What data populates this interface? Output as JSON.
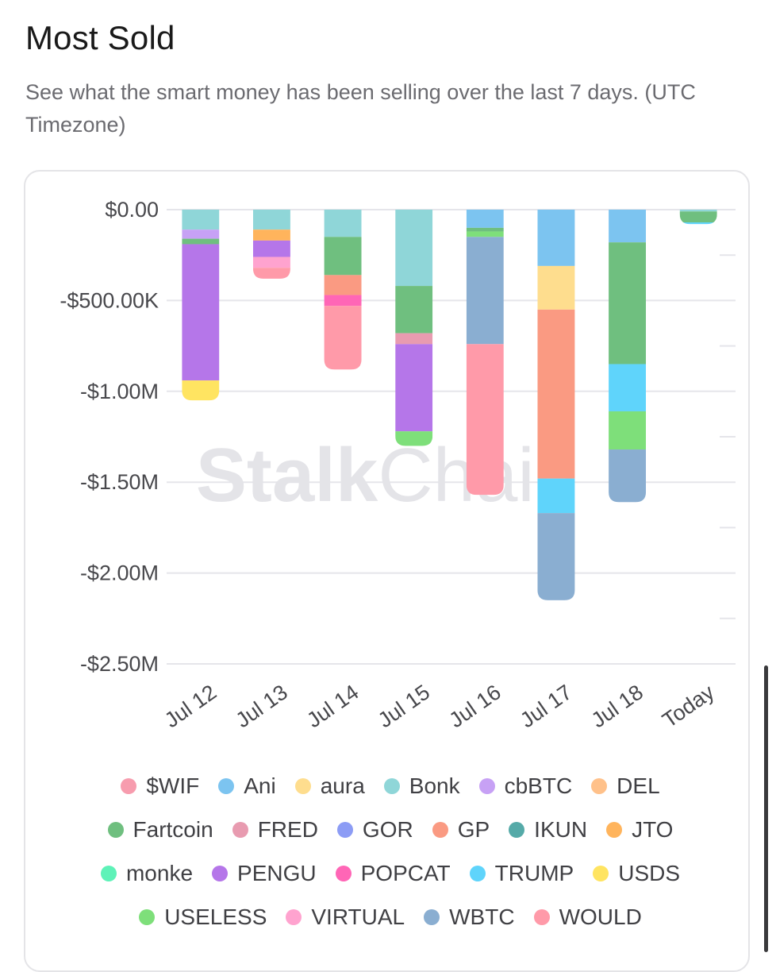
{
  "header": {
    "title": "Most Sold",
    "subtitle": "See what the smart money has been selling over the last 7 days. (UTC Timezone)"
  },
  "watermark": {
    "text_bold": "Stalk",
    "text_light": "Chain"
  },
  "chart_data": {
    "type": "bar",
    "stacked": true,
    "categories": [
      "Jul 12",
      "Jul 13",
      "Jul 14",
      "Jul 15",
      "Jul 16",
      "Jul 17",
      "Jul 18",
      "Today"
    ],
    "y_ticks": [
      {
        "value": 0,
        "label": "$0.00"
      },
      {
        "value": -500000,
        "label": "-$500.00K"
      },
      {
        "value": -1000000,
        "label": "-$1.00M"
      },
      {
        "value": -1500000,
        "label": "-$1.50M"
      },
      {
        "value": -2000000,
        "label": "-$2.00M"
      },
      {
        "value": -2500000,
        "label": "-$2.50M"
      }
    ],
    "ylim": [
      -2500000,
      0
    ],
    "grid": true,
    "legend_position": "bottom",
    "series": [
      {
        "name": "$WIF",
        "color": "#f79cae",
        "values": [
          0,
          0,
          0,
          0,
          0,
          0,
          0,
          0
        ]
      },
      {
        "name": "Ani",
        "color": "#7cc4f0",
        "values": [
          0,
          0,
          0,
          0,
          -100000,
          -310000,
          -180000,
          0
        ]
      },
      {
        "name": "aura",
        "color": "#fedd8e",
        "values": [
          0,
          0,
          0,
          0,
          0,
          -240000,
          0,
          0
        ]
      },
      {
        "name": "Bonk",
        "color": "#8fd6d8",
        "values": [
          -110000,
          -110000,
          -150000,
          -420000,
          0,
          0,
          0,
          -10000
        ]
      },
      {
        "name": "cbBTC",
        "color": "#c7a1f5",
        "values": [
          -50000,
          0,
          0,
          0,
          0,
          0,
          0,
          0
        ]
      },
      {
        "name": "DEL",
        "color": "#ffc18a",
        "values": [
          0,
          0,
          0,
          0,
          0,
          0,
          0,
          0
        ]
      },
      {
        "name": "Fartcoin",
        "color": "#6fbf7f",
        "values": [
          -30000,
          0,
          -210000,
          -260000,
          -20000,
          0,
          -670000,
          -60000
        ]
      },
      {
        "name": "FRED",
        "color": "#e89bb0",
        "values": [
          0,
          0,
          0,
          -60000,
          0,
          0,
          0,
          0
        ]
      },
      {
        "name": "GOR",
        "color": "#8c9cf5",
        "values": [
          0,
          0,
          0,
          0,
          0,
          0,
          0,
          0
        ]
      },
      {
        "name": "GP",
        "color": "#fa9a82",
        "values": [
          0,
          0,
          -110000,
          0,
          0,
          -930000,
          0,
          0
        ]
      },
      {
        "name": "IKUN",
        "color": "#55aaa8",
        "values": [
          0,
          0,
          0,
          0,
          0,
          0,
          0,
          0
        ]
      },
      {
        "name": "JTO",
        "color": "#ffb45c",
        "values": [
          0,
          -60000,
          0,
          0,
          0,
          0,
          0,
          0
        ]
      },
      {
        "name": "monke",
        "color": "#5ef2b8",
        "values": [
          0,
          0,
          0,
          0,
          0,
          0,
          0,
          0
        ]
      },
      {
        "name": "PENGU",
        "color": "#b576e9",
        "values": [
          -750000,
          -90000,
          0,
          -480000,
          0,
          0,
          0,
          0
        ]
      },
      {
        "name": "POPCAT",
        "color": "#ff66b6",
        "values": [
          0,
          0,
          -60000,
          0,
          0,
          0,
          0,
          0
        ]
      },
      {
        "name": "TRUMP",
        "color": "#5fd4fb",
        "values": [
          0,
          0,
          0,
          0,
          0,
          -190000,
          -260000,
          -10000
        ]
      },
      {
        "name": "USDS",
        "color": "#ffe461",
        "values": [
          -110000,
          0,
          0,
          0,
          0,
          0,
          0,
          0
        ]
      },
      {
        "name": "USELESS",
        "color": "#7edf7a",
        "values": [
          0,
          0,
          0,
          -80000,
          -30000,
          0,
          -210000,
          0
        ]
      },
      {
        "name": "VIRTUAL",
        "color": "#ffa3cf",
        "values": [
          0,
          -60000,
          0,
          0,
          0,
          0,
          0,
          0
        ]
      },
      {
        "name": "WBTC",
        "color": "#8aaed1",
        "values": [
          0,
          0,
          0,
          0,
          -590000,
          -480000,
          -290000,
          0
        ]
      },
      {
        "name": "WOULD",
        "color": "#ff9aa9",
        "values": [
          0,
          -60000,
          -350000,
          0,
          -830000,
          0,
          0,
          0
        ]
      }
    ]
  }
}
